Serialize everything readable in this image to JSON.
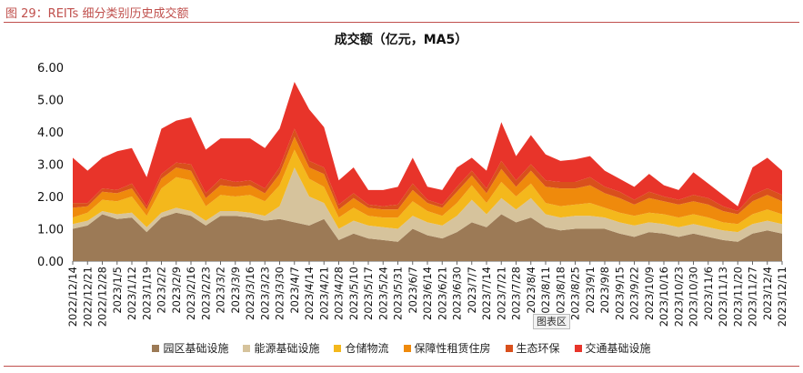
{
  "caption": "图 29：REITs 细分类别历史成交额",
  "plot_tag": "图表区",
  "chart_data": {
    "type": "area",
    "stacked": true,
    "title": "成交额（亿元，MA5）",
    "xlabel": "",
    "ylabel": "",
    "ylim": [
      0,
      6
    ],
    "yticks": [
      "0.00",
      "1.00",
      "2.00",
      "3.00",
      "4.00",
      "5.00",
      "6.00"
    ],
    "x": [
      "2022/12/14",
      "2022/12/21",
      "2022/12/28",
      "2023/1/5",
      "2023/1/12",
      "2023/1/19",
      "2023/2/2",
      "2023/2/9",
      "2023/2/16",
      "2023/2/23",
      "2023/3/2",
      "2023/3/9",
      "2023/3/16",
      "2023/3/23",
      "2023/3/30",
      "2023/4/7",
      "2023/4/14",
      "2023/4/21",
      "2023/4/28",
      "2023/5/10",
      "2023/5/17",
      "2023/5/24",
      "2023/5/31",
      "2023/6/7",
      "2023/6/14",
      "2023/6/21",
      "2023/6/30",
      "2023/7/7",
      "2023/7/14",
      "2023/7/21",
      "2023/7/28",
      "2023/8/4",
      "2023/8/11",
      "2023/8/18",
      "2023/8/25",
      "2023/9/1",
      "2023/9/8",
      "2023/9/15",
      "2023/9/22",
      "2023/10/9",
      "2023/10/16",
      "2023/10/23",
      "2023/10/30",
      "2023/11/6",
      "2023/11/13",
      "2023/11/20",
      "2023/11/27",
      "2023/12/4",
      "2023/12/11"
    ],
    "legend": [
      "园区基础设施",
      "能源基础设施",
      "仓储物流",
      "保障性租赁住房",
      "生态环保",
      "交通基础设施"
    ],
    "colors": [
      "#9c7a56",
      "#d6c39c",
      "#f4b81c",
      "#ef8a0c",
      "#d9501c",
      "#e8342a"
    ],
    "series": [
      {
        "name": "园区基础设施",
        "values": [
          1.0,
          1.1,
          1.45,
          1.3,
          1.35,
          0.9,
          1.35,
          1.5,
          1.4,
          1.1,
          1.4,
          1.4,
          1.35,
          1.25,
          1.3,
          1.2,
          1.1,
          1.3,
          0.65,
          0.85,
          0.7,
          0.65,
          0.6,
          1.0,
          0.8,
          0.7,
          0.9,
          1.2,
          1.05,
          1.45,
          1.2,
          1.35,
          1.05,
          0.95,
          1.0,
          1.0,
          1.0,
          0.85,
          0.75,
          0.9,
          0.85,
          0.75,
          0.85,
          0.75,
          0.65,
          0.6,
          0.85,
          0.95,
          0.85
        ]
      },
      {
        "name": "能源基础设施",
        "values": [
          0.15,
          0.15,
          0.1,
          0.15,
          0.15,
          0.15,
          0.15,
          0.15,
          0.15,
          0.15,
          0.15,
          0.15,
          0.15,
          0.15,
          0.4,
          1.7,
          0.9,
          0.5,
          0.35,
          0.4,
          0.4,
          0.4,
          0.4,
          0.4,
          0.4,
          0.4,
          0.5,
          0.7,
          0.4,
          0.5,
          0.4,
          0.6,
          0.4,
          0.4,
          0.4,
          0.4,
          0.35,
          0.35,
          0.35,
          0.3,
          0.3,
          0.3,
          0.3,
          0.3,
          0.3,
          0.3,
          0.3,
          0.3,
          0.3
        ]
      },
      {
        "name": "仓储物流",
        "values": [
          0.2,
          0.25,
          0.35,
          0.4,
          0.5,
          0.35,
          0.75,
          0.95,
          0.95,
          0.45,
          0.5,
          0.45,
          0.55,
          0.45,
          0.65,
          0.55,
          0.55,
          0.5,
          0.35,
          0.4,
          0.3,
          0.3,
          0.35,
          0.45,
          0.35,
          0.3,
          0.4,
          0.45,
          0.35,
          0.5,
          0.4,
          0.45,
          0.35,
          0.35,
          0.35,
          0.4,
          0.3,
          0.3,
          0.3,
          0.3,
          0.3,
          0.3,
          0.3,
          0.3,
          0.25,
          0.25,
          0.3,
          0.35,
          0.3
        ]
      },
      {
        "name": "保障性租赁住房",
        "values": [
          0.3,
          0.2,
          0.25,
          0.25,
          0.25,
          0.2,
          0.3,
          0.3,
          0.3,
          0.25,
          0.3,
          0.3,
          0.3,
          0.25,
          0.35,
          0.4,
          0.35,
          0.4,
          0.25,
          0.3,
          0.25,
          0.25,
          0.25,
          0.35,
          0.25,
          0.25,
          0.35,
          0.3,
          0.3,
          0.4,
          0.3,
          0.4,
          0.5,
          0.55,
          0.5,
          0.55,
          0.45,
          0.45,
          0.35,
          0.45,
          0.4,
          0.4,
          0.4,
          0.4,
          0.35,
          0.3,
          0.4,
          0.45,
          0.4
        ]
      },
      {
        "name": "生态环保",
        "values": [
          0.15,
          0.1,
          0.1,
          0.1,
          0.15,
          0.1,
          0.15,
          0.15,
          0.2,
          0.15,
          0.2,
          0.15,
          0.15,
          0.15,
          0.2,
          0.25,
          0.2,
          0.2,
          0.15,
          0.15,
          0.1,
          0.1,
          0.15,
          0.2,
          0.1,
          0.1,
          0.15,
          0.15,
          0.15,
          0.25,
          0.2,
          0.2,
          0.2,
          0.2,
          0.2,
          0.25,
          0.2,
          0.2,
          0.15,
          0.2,
          0.15,
          0.15,
          0.2,
          0.2,
          0.15,
          0.1,
          0.2,
          0.2,
          0.2
        ]
      },
      {
        "name": "交通基础设施",
        "values": [
          1.4,
          1.0,
          0.95,
          1.2,
          1.1,
          0.9,
          1.4,
          1.3,
          1.45,
          1.35,
          1.25,
          1.35,
          1.3,
          1.25,
          1.2,
          1.45,
          1.6,
          1.25,
          0.75,
          0.8,
          0.45,
          0.5,
          0.55,
          0.8,
          0.4,
          0.45,
          0.6,
          0.4,
          0.55,
          1.2,
          0.75,
          0.9,
          0.8,
          0.65,
          0.7,
          0.65,
          0.5,
          0.4,
          0.4,
          0.55,
          0.35,
          0.3,
          0.7,
          0.45,
          0.35,
          0.15,
          0.85,
          0.95,
          0.75
        ]
      }
    ]
  }
}
